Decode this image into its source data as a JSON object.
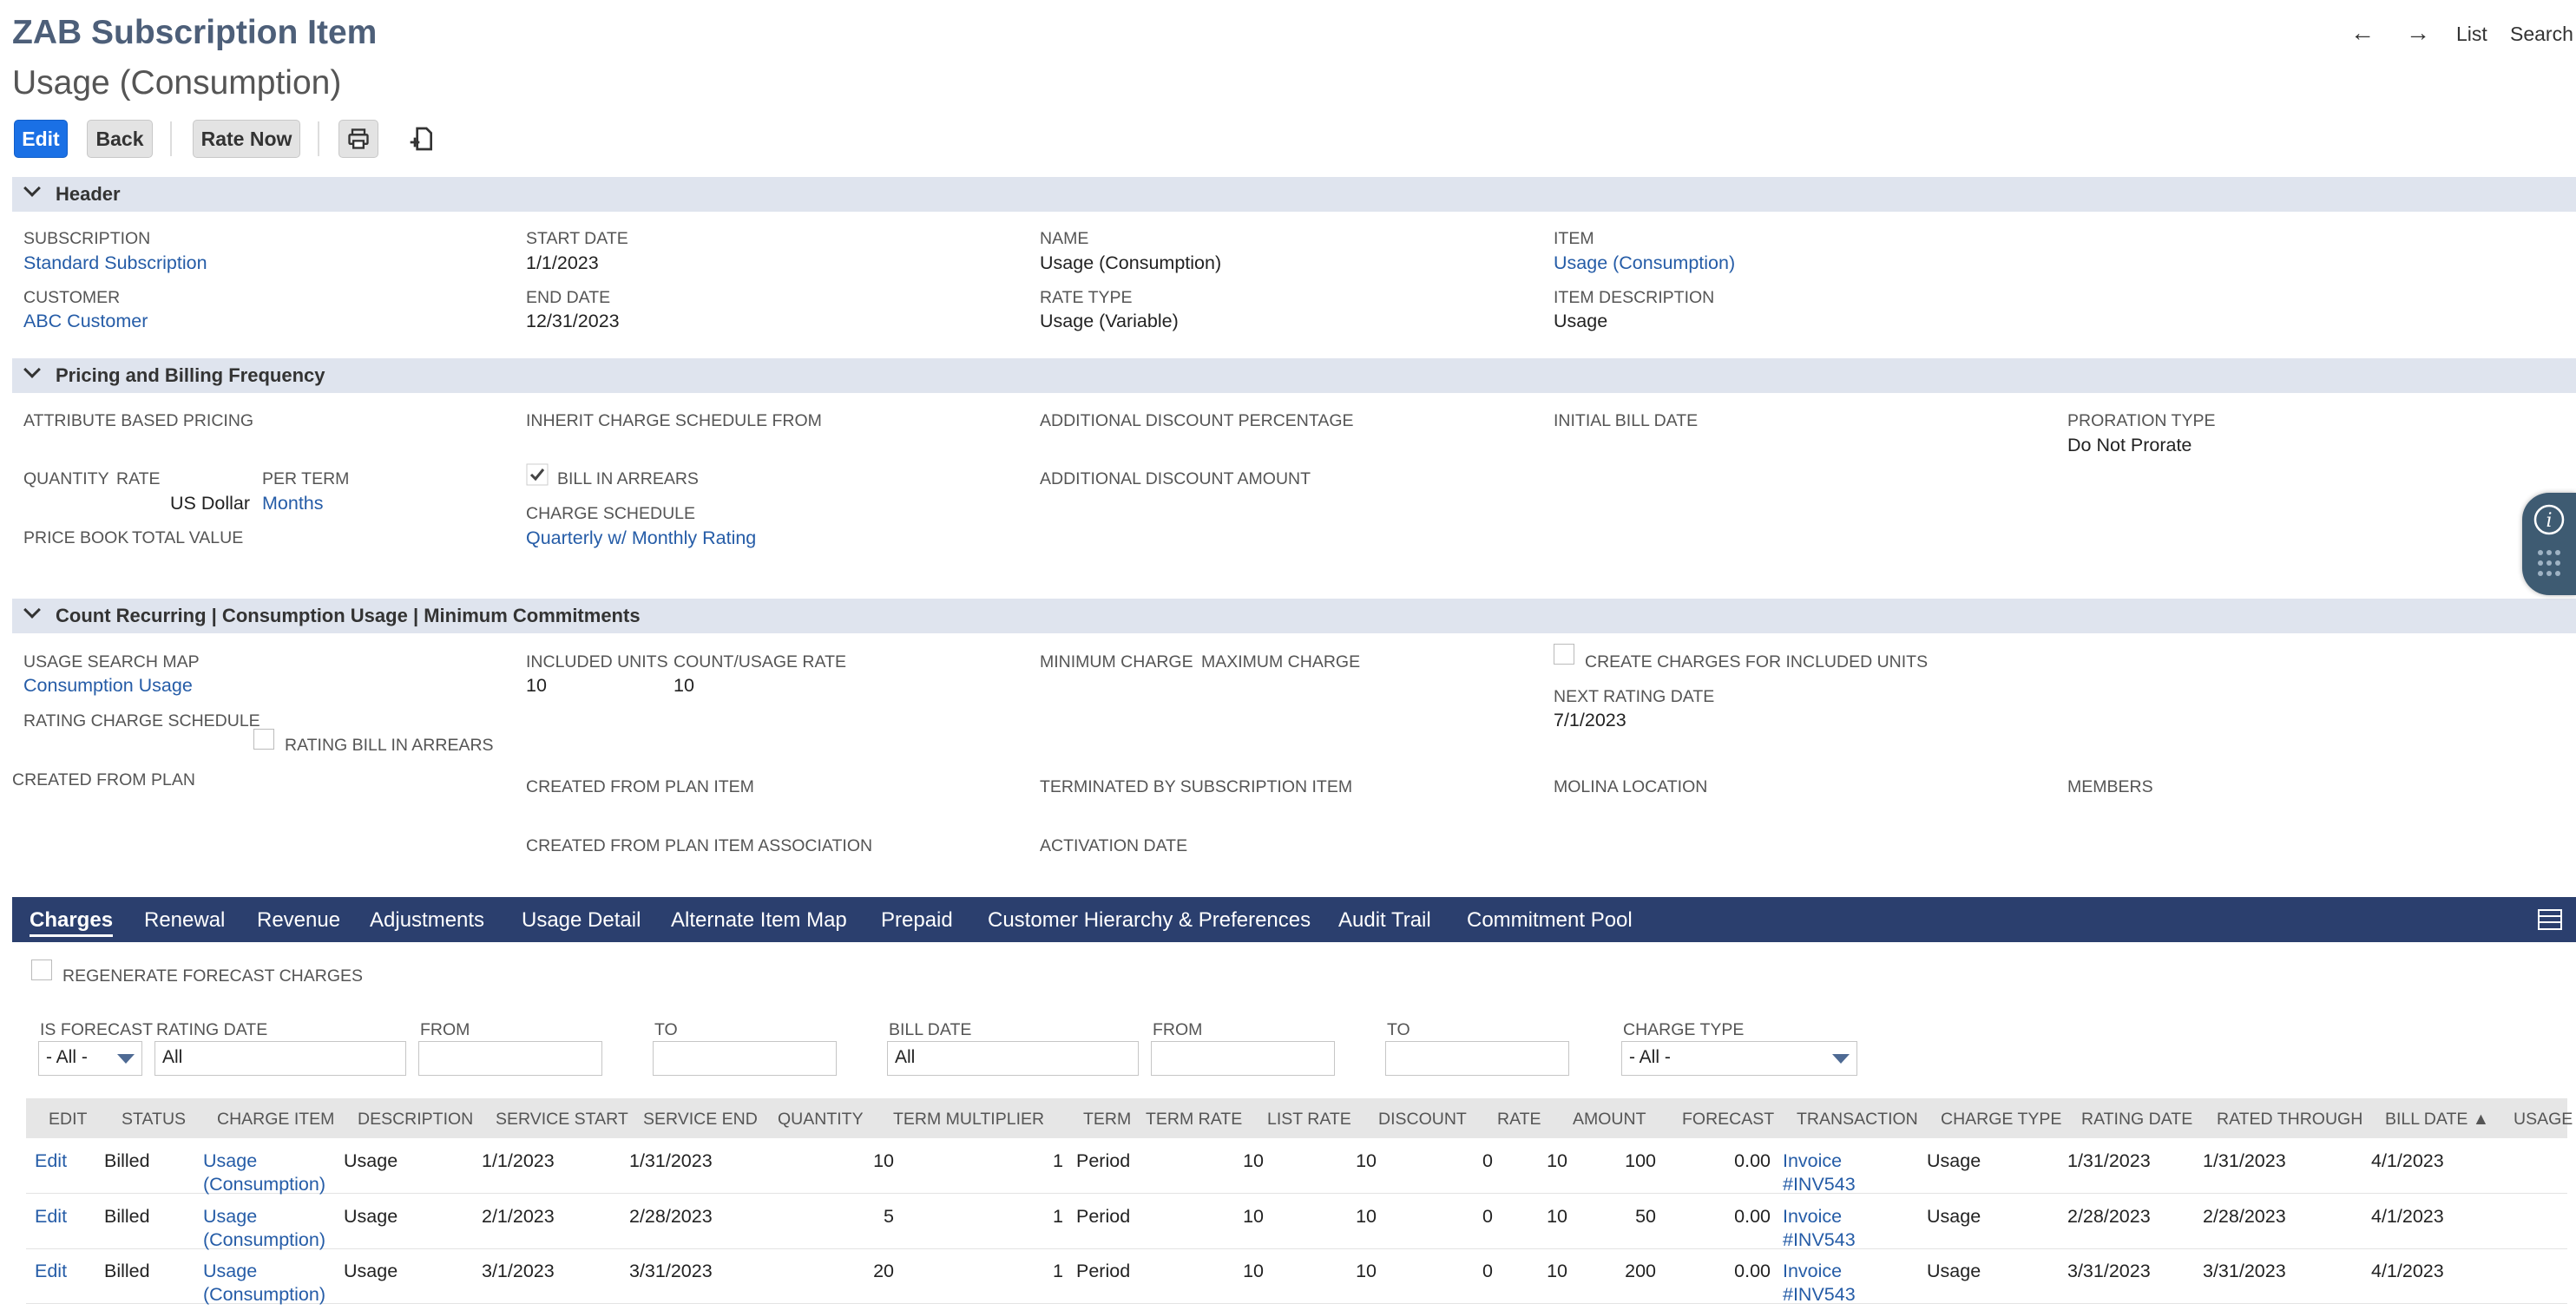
{
  "record": {
    "title": "ZAB Subscription Item",
    "name": "Usage (Consumption)"
  },
  "nav": {
    "prev_icon": "←",
    "next_icon": "→",
    "list": "List",
    "search": "Search"
  },
  "toolbar": {
    "edit": "Edit",
    "back": "Back",
    "rate_now": "Rate Now"
  },
  "header": {
    "title": "Header",
    "subscription_label": "SUBSCRIPTION",
    "subscription": "Standard Subscription",
    "customer_label": "CUSTOMER",
    "customer": "ABC Customer",
    "start_date_label": "START DATE",
    "start_date": "1/1/2023",
    "end_date_label": "END DATE",
    "end_date": "12/31/2023",
    "name_label": "NAME",
    "name": "Usage (Consumption)",
    "rate_type_label": "RATE TYPE",
    "rate_type": "Usage (Variable)",
    "item_label": "ITEM",
    "item": "Usage (Consumption)",
    "item_desc_label": "ITEM DESCRIPTION",
    "item_desc": "Usage"
  },
  "pricing": {
    "title": "Pricing and Billing Frequency",
    "attr_pricing": "ATTRIBUTE BASED PRICING",
    "quantity": "QUANTITY",
    "rate": "RATE",
    "currency": "US Dollar",
    "per_term": "PER TERM",
    "per_term_value": "Months",
    "price_book": "PRICE BOOK",
    "total_value": "TOTAL VALUE",
    "inherit": "INHERIT CHARGE SCHEDULE FROM",
    "bill_in_arrears": "BILL IN ARREARS",
    "charge_schedule_label": "CHARGE SCHEDULE",
    "charge_schedule": "Quarterly w/ Monthly Rating",
    "add_disc_pct": "ADDITIONAL DISCOUNT PERCENTAGE",
    "add_disc_amt": "ADDITIONAL DISCOUNT AMOUNT",
    "initial_bill": "INITIAL BILL DATE",
    "proration_label": "PRORATION TYPE",
    "proration": "Do Not Prorate"
  },
  "count": {
    "title": "Count Recurring | Consumption Usage | Minimum Commitments",
    "usage_map_label": "USAGE SEARCH MAP",
    "usage_map": "Consumption Usage",
    "rating_sched": "RATING CHARGE SCHEDULE",
    "rating_arrears": "RATING BILL IN ARREARS",
    "created_plan": "CREATED FROM PLAN",
    "included_label": "INCLUDED UNITS",
    "included": "10",
    "count_rate_label": "COUNT/USAGE RATE",
    "count_rate": "10",
    "created_plan_item": "CREATED FROM PLAN ITEM",
    "created_plan_assoc": "CREATED FROM PLAN ITEM ASSOCIATION",
    "min_charge": "MINIMUM CHARGE",
    "max_charge": "MAXIMUM CHARGE",
    "terminated": "TERMINATED BY SUBSCRIPTION ITEM",
    "activation": "ACTIVATION DATE",
    "create_charges": "CREATE CHARGES FOR INCLUDED UNITS",
    "next_rating_label": "NEXT RATING DATE",
    "next_rating": "7/1/2023",
    "molina": "MOLINA LOCATION",
    "members": "MEMBERS"
  },
  "tabs": [
    "Charges",
    "Renewal",
    "Revenue",
    "Adjustments",
    "Usage Detail",
    "Alternate Item Map",
    "Prepaid",
    "Customer Hierarchy & Preferences",
    "Audit Trail",
    "Commitment Pool"
  ],
  "filters": {
    "regen": "REGENERATE FORECAST CHARGES",
    "is_forecast_label": "IS FORECAST",
    "is_forecast": "- All -",
    "rating_date_label": "RATING DATE",
    "rating_date": "All",
    "from": "FROM",
    "to": "TO",
    "bill_date_label": "BILL DATE",
    "bill_date": "All",
    "charge_type_label": "CHARGE TYPE",
    "charge_type": "- All -"
  },
  "table": {
    "headers": [
      "EDIT",
      "STATUS",
      "CHARGE ITEM",
      "DESCRIPTION",
      "SERVICE START",
      "SERVICE END",
      "QUANTITY",
      "TERM MULTIPLIER",
      "TERM",
      "TERM RATE",
      "LIST RATE",
      "DISCOUNT",
      "RATE",
      "AMOUNT",
      "FORECAST",
      "TRANSACTION",
      "CHARGE TYPE",
      "RATING DATE",
      "RATED THROUGH",
      "BILL DATE ▲",
      "USAGE"
    ],
    "rows": [
      [
        "Edit",
        "Billed",
        "Usage\n(Consumption)",
        "Usage",
        "1/1/2023",
        "1/31/2023",
        "10",
        "1",
        "Period",
        "10",
        "10",
        "0",
        "10",
        "100",
        "0.00",
        "Invoice\n#INV543",
        "Usage",
        "1/31/2023",
        "1/31/2023",
        "4/1/2023",
        ""
      ],
      [
        "Edit",
        "Billed",
        "Usage\n(Consumption)",
        "Usage",
        "2/1/2023",
        "2/28/2023",
        "5",
        "1",
        "Period",
        "10",
        "10",
        "0",
        "10",
        "50",
        "0.00",
        "Invoice\n#INV543",
        "Usage",
        "2/28/2023",
        "2/28/2023",
        "4/1/2023",
        ""
      ],
      [
        "Edit",
        "Billed",
        "Usage\n(Consumption)",
        "Usage",
        "3/1/2023",
        "3/31/2023",
        "20",
        "1",
        "Period",
        "10",
        "10",
        "0",
        "10",
        "200",
        "0.00",
        "Invoice\n#INV543",
        "Usage",
        "3/31/2023",
        "3/31/2023",
        "4/1/2023",
        ""
      ]
    ]
  }
}
